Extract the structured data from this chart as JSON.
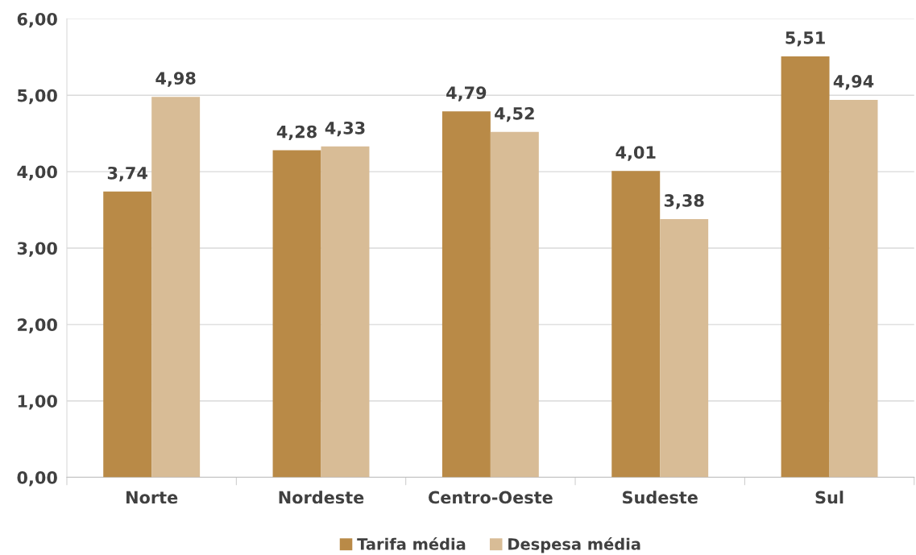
{
  "chart_data": {
    "type": "bar",
    "categories": [
      "Norte",
      "Nordeste",
      "Centro-Oeste",
      "Sudeste",
      "Sul"
    ],
    "series": [
      {
        "name": "Tarifa média",
        "color": "#b98a47",
        "values": [
          3.74,
          4.28,
          4.79,
          4.01,
          5.51
        ],
        "value_labels": [
          "3,74",
          "4,28",
          "4,79",
          "4,01",
          "5,51"
        ]
      },
      {
        "name": "Despesa média",
        "color": "#d8bc96",
        "values": [
          4.98,
          4.33,
          4.52,
          3.38,
          4.94
        ],
        "value_labels": [
          "4,98",
          "4,33",
          "4,52",
          "3,38",
          "4,94"
        ]
      }
    ],
    "ylim": [
      0,
      6
    ],
    "yticks": [
      {
        "value": 0,
        "label": "0,00"
      },
      {
        "value": 1,
        "label": "1,00"
      },
      {
        "value": 2,
        "label": "2,00"
      },
      {
        "value": 3,
        "label": "3,00"
      },
      {
        "value": 4,
        "label": "4,00"
      },
      {
        "value": 5,
        "label": "5,00"
      },
      {
        "value": 6,
        "label": "6,00"
      }
    ],
    "grid": "y",
    "legend": "bottom"
  }
}
